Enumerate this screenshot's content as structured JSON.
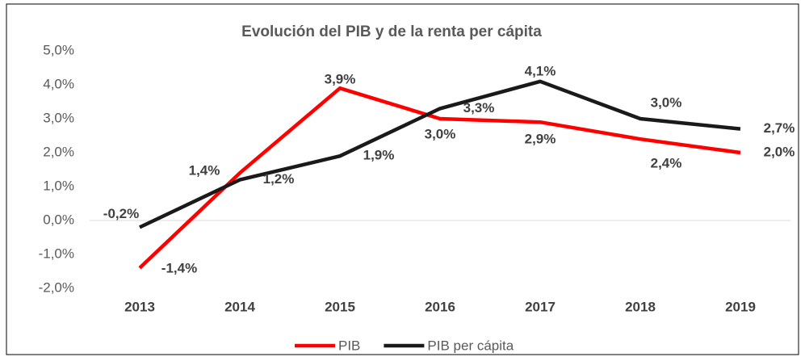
{
  "chart_data": {
    "type": "line",
    "title": "Evolución del PIB y de la renta per cápita",
    "categories": [
      "2013",
      "2014",
      "2015",
      "2016",
      "2017",
      "2018",
      "2019"
    ],
    "series": [
      {
        "name": "PIB",
        "color": "#ff0000",
        "values": [
          -1.4,
          1.4,
          3.9,
          3.0,
          2.9,
          2.4,
          2.0
        ],
        "value_labels": [
          "-1,4%",
          "1,4%",
          "3,9%",
          "3,0%",
          "2,9%",
          "2,4%",
          "2,0%"
        ]
      },
      {
        "name": "PIB per cápita",
        "color": "#1a1a1a",
        "values": [
          -0.2,
          1.2,
          1.9,
          3.3,
          4.1,
          3.0,
          2.7
        ],
        "value_labels": [
          "-0,2%",
          "1,2%",
          "1,9%",
          "3,3%",
          "4,1%",
          "3,0%",
          "2,7%"
        ]
      }
    ],
    "ylim": [
      -2,
      5
    ],
    "yticks": [
      {
        "value": -2,
        "label": "-2,0%"
      },
      {
        "value": -1,
        "label": "-1,0%"
      },
      {
        "value": 0,
        "label": "0,0%"
      },
      {
        "value": 1,
        "label": "1,0%"
      },
      {
        "value": 2,
        "label": "2,0%"
      },
      {
        "value": 3,
        "label": "3,0%"
      },
      {
        "value": 4,
        "label": "4,0%"
      },
      {
        "value": 5,
        "label": "5,0%"
      }
    ],
    "grid": false,
    "legend": "bottom"
  }
}
